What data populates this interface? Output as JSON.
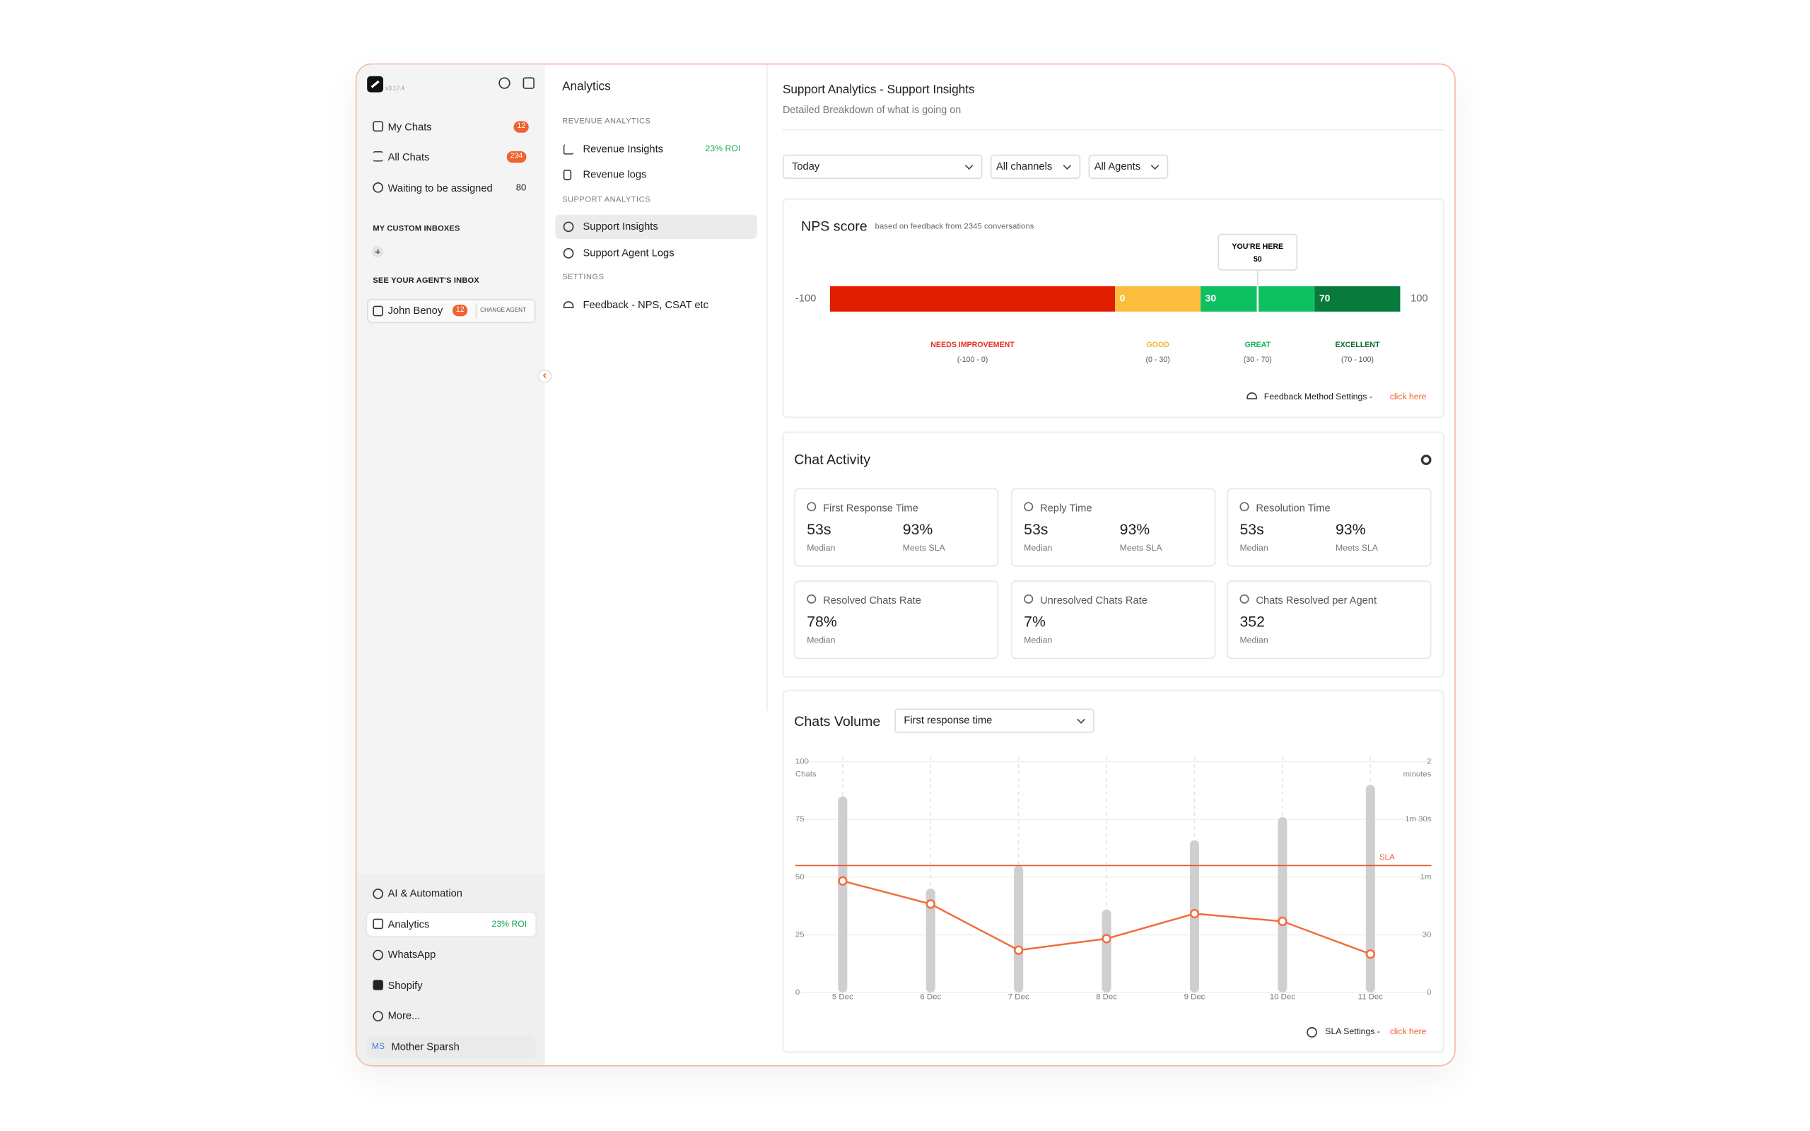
{
  "sidebar": {
    "version": "v3.17.4",
    "inbox_items": [
      {
        "label": "My Chats",
        "count": 12
      },
      {
        "label": "All Chats",
        "count": 234
      },
      {
        "label": "Waiting to be assigned",
        "count": 80
      }
    ],
    "custom_inboxes_heading": "MY CUSTOM INBOXES",
    "agent_inbox_heading": "SEE YOUR AGENT'S INBOX",
    "agent": {
      "name": "John Benoy",
      "count": 12,
      "action": "CHANGE AGENT"
    },
    "bottom_items": [
      {
        "label": "AI & Automation"
      },
      {
        "label": "Analytics",
        "roi": "23%  ROI"
      },
      {
        "label": "WhatsApp"
      },
      {
        "label": "Shopify"
      },
      {
        "label": "More..."
      }
    ],
    "user": {
      "initials": "MS",
      "name": "Mother Sparsh"
    }
  },
  "analytics_nav": {
    "title": "Analytics",
    "sections": [
      {
        "heading": "REVENUE ANALYTICS",
        "items": [
          {
            "label": "Revenue Insights",
            "roi": "23%  ROI"
          },
          {
            "label": "Revenue logs"
          }
        ]
      },
      {
        "heading": "SUPPORT ANALYTICS",
        "items": [
          {
            "label": "Support Insights"
          },
          {
            "label": "Support Agent Logs"
          }
        ]
      },
      {
        "heading": "SETTINGS",
        "items": [
          {
            "label": "Feedback - NPS, CSAT etc"
          }
        ]
      }
    ]
  },
  "header": {
    "title": "Support Analytics - Support Insights",
    "subtitle": "Detailed Breakdown of what is going on"
  },
  "filters": [
    "Today",
    "All channels",
    "All Agents"
  ],
  "nps": {
    "title": "NPS score",
    "note": "based on feedback from 2345 conversations",
    "bounds": [
      -100,
      0,
      30,
      70,
      100
    ],
    "segments": [
      {
        "name": "NEEDS IMPROVEMENT",
        "range": "(-100 - 0)",
        "color": "#e11d00",
        "label_color": "#e0301e"
      },
      {
        "name": "GOOD",
        "range": "(0 - 30)",
        "color": "#fbbd3d",
        "label_color": "#f3b431"
      },
      {
        "name": "GREAT",
        "range": "(30 - 70)",
        "color": "#0fc062",
        "label_color": "#13b359"
      },
      {
        "name": "EXCELLENT",
        "range": "(70 - 100)",
        "color": "#087b3c",
        "label_color": "#0b6b35"
      }
    ],
    "marker": {
      "label": "YOU'RE HERE",
      "value": 50
    },
    "footer": {
      "text": "Feedback Method Settings - ",
      "link": "click here"
    }
  },
  "chat_activity": {
    "title": "Chat Activity",
    "metrics": [
      {
        "title": "First Response Time",
        "stats": [
          {
            "value": "53s",
            "label": "Median"
          },
          {
            "value": "93%",
            "label": "Meets SLA"
          }
        ]
      },
      {
        "title": "Reply Time",
        "stats": [
          {
            "value": "53s",
            "label": "Median"
          },
          {
            "value": "93%",
            "label": "Meets SLA"
          }
        ]
      },
      {
        "title": "Resolution Time",
        "stats": [
          {
            "value": "53s",
            "label": "Median"
          },
          {
            "value": "93%",
            "label": "Meets SLA"
          }
        ]
      },
      {
        "title": "Resolved Chats Rate",
        "stats": [
          {
            "value": "78%",
            "label": "Median"
          }
        ]
      },
      {
        "title": "Unresolved Chats Rate",
        "stats": [
          {
            "value": "7%",
            "label": "Median"
          }
        ]
      },
      {
        "title": "Chats Resolved per Agent",
        "stats": [
          {
            "value": "352",
            "label": "Median"
          }
        ]
      }
    ]
  },
  "chart_data": {
    "type": "bar",
    "title": "Chats Volume",
    "categories": [
      "5 Dec",
      "6 Dec",
      "7 Dec",
      "8 Dec",
      "9 Dec",
      "10 Dec",
      "11 Dec"
    ],
    "series": [
      {
        "name": "Chats",
        "type": "bar",
        "color": "#cfcfcf",
        "values": [
          85,
          45,
          55,
          36,
          66,
          76,
          90
        ]
      },
      {
        "name": "First response time",
        "type": "line",
        "axis": "y2",
        "color": "#f26b3a",
        "values": [
          58,
          46,
          22,
          28,
          41,
          37,
          20
        ]
      }
    ],
    "ylim": [
      0,
      100
    ],
    "yticks": [
      0,
      25,
      50,
      75,
      100
    ],
    "y2lim": [
      0,
      120
    ],
    "y2ticks": [
      0,
      30,
      {
        "value": 60,
        "label": "1m"
      },
      {
        "value": 90,
        "label": "1m 30s"
      },
      {
        "value": 120,
        "label": "2"
      }
    ],
    "y2label": "minutes",
    "sla": {
      "label": "SLA",
      "value": 66,
      "axis": "y2",
      "color": "#f0552a"
    },
    "grid": true,
    "footer": {
      "text": "SLA Settings - ",
      "link": "click here"
    }
  }
}
